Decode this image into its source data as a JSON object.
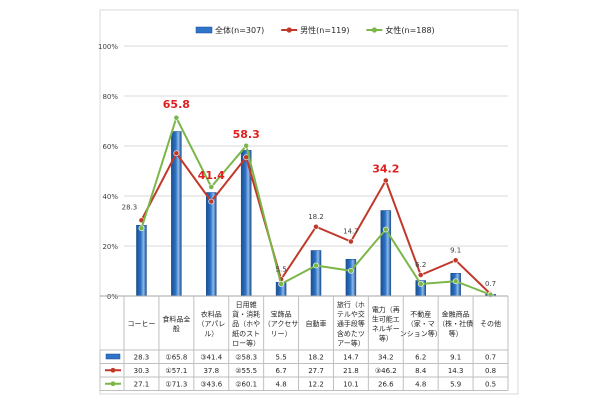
{
  "chart_data": {
    "type": "bar",
    "title": "",
    "xlabel": "",
    "ylabel": "",
    "ylim": [
      0,
      100
    ],
    "y_ticks": [
      "0%",
      "20%",
      "40%",
      "60%",
      "80%",
      "100%"
    ],
    "grid": true,
    "legend_position": "top",
    "categories": [
      [
        "コーヒー"
      ],
      [
        "食料品全",
        "般"
      ],
      [
        "衣料品",
        "（アパレ",
        "ル）"
      ],
      [
        "日用雑",
        "貨・消耗",
        "品（ホや",
        "紙のスト",
        "ロー等）"
      ],
      [
        "宝飾品",
        "（アクセサ",
        "リー）"
      ],
      [
        "自動車"
      ],
      [
        "旅行（ホ",
        "テルや交",
        "通手段等",
        "含めたツ",
        "アー等）"
      ],
      [
        "電力（再",
        "生可能エ",
        "ネルギー",
        "等）"
      ],
      [
        "不動産",
        "（家・マ",
        "ンション等）"
      ],
      [
        "金融商品",
        "（株・社債",
        "等）"
      ],
      [
        "その他"
      ]
    ],
    "series": [
      {
        "name": "全体(n=307)",
        "type": "bar",
        "color": "#2e74c8",
        "values": [
          28.3,
          65.8,
          41.4,
          58.3,
          5.5,
          18.2,
          14.7,
          34.2,
          6.2,
          9.1,
          0.7
        ],
        "table_labels": [
          "28.3",
          "①65.8",
          "③41.4",
          "②58.3",
          "5.5",
          "18.2",
          "14.7",
          "34.2",
          "6.2",
          "9.1",
          "0.7"
        ]
      },
      {
        "name": "男性(n=119)",
        "type": "line",
        "color": "#c0392b",
        "values": [
          30.3,
          57.1,
          37.8,
          55.5,
          6.7,
          27.7,
          21.8,
          46.2,
          8.4,
          14.3,
          0.8
        ],
        "table_labels": [
          "30.3",
          "①57.1",
          "37.8",
          "②55.5",
          "6.7",
          "27.7",
          "21.8",
          "③46.2",
          "8.4",
          "14.3",
          "0.8"
        ]
      },
      {
        "name": "女性(n=188)",
        "type": "line",
        "color": "#7ab648",
        "values": [
          27.1,
          71.3,
          43.6,
          60.1,
          4.8,
          12.2,
          10.1,
          26.6,
          4.8,
          5.9,
          0.5
        ],
        "table_labels": [
          "27.1",
          "①71.3",
          "③43.6",
          "②60.1",
          "4.8",
          "12.2",
          "10.1",
          "26.6",
          "4.8",
          "5.9",
          "0.5"
        ]
      }
    ],
    "data_labels": [
      {
        "text": "28.3",
        "category": 0,
        "highlight": false
      },
      {
        "text": "65.8",
        "category": 1,
        "highlight": true
      },
      {
        "text": "41.4",
        "category": 2,
        "highlight": true
      },
      {
        "text": "58.3",
        "category": 3,
        "highlight": true
      },
      {
        "text": "5.5",
        "category": 4,
        "highlight": false
      },
      {
        "text": "18.2",
        "category": 5,
        "highlight": false
      },
      {
        "text": "14.7",
        "category": 6,
        "highlight": false
      },
      {
        "text": "34.2",
        "category": 7,
        "highlight": true
      },
      {
        "text": "6.2",
        "category": 8,
        "highlight": false
      },
      {
        "text": "9.1",
        "category": 9,
        "highlight": false
      },
      {
        "text": "0.7",
        "category": 10,
        "highlight": false
      }
    ],
    "highlight_color": "#e02020"
  }
}
